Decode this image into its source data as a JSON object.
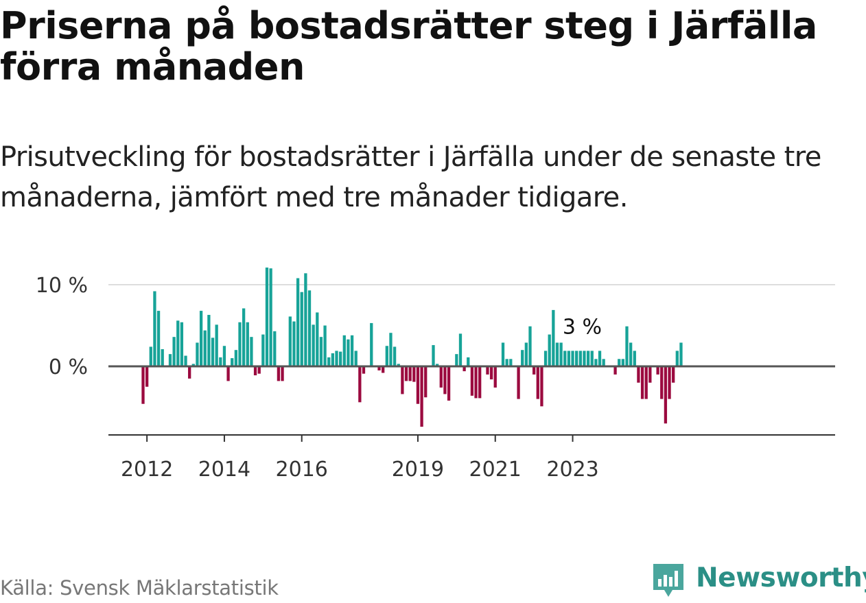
{
  "title": "Priserna på bostadsrätter steg i Järfälla förra månaden",
  "subtitle": "Prisutveckling för bostadsrätter i Järfälla under de senaste tre månaderna, jämfört med tre månader tidigare.",
  "source": "Källa: Svensk Mäklarstatistik",
  "logo": {
    "text": "Newsworthy",
    "icon": "newsworthy-logo-icon"
  },
  "colors": {
    "positive": "#17a398",
    "negative": "#9b0a3f",
    "grid": "#dddddd",
    "zero_line": "#555555",
    "brand": "#2b8f86"
  },
  "chart_data": {
    "type": "bar",
    "title": "Priserna på bostadsrätter steg i Järfälla förra månaden",
    "xlabel": "",
    "ylabel": "",
    "unit": "%",
    "ylim": [
      -8.5,
      12.5
    ],
    "yticks": [
      0,
      10
    ],
    "ytick_labels": [
      "0 %",
      "10 %"
    ],
    "x_start": "2011-12",
    "x_ticks": [
      {
        "label": "2012",
        "index": 1
      },
      {
        "label": "2014",
        "index": 21
      },
      {
        "label": "2016",
        "index": 41
      },
      {
        "label": "2019",
        "index": 71
      },
      {
        "label": "2021",
        "index": 91
      },
      {
        "label": "2023",
        "index": 111
      }
    ],
    "annotation": {
      "text": "3 %",
      "index": 114
    },
    "series": [
      {
        "name": "Prisutveckling",
        "values": [
          -4.6,
          -2.5,
          2.4,
          9.2,
          6.8,
          2.1,
          0,
          1.5,
          3.6,
          5.6,
          5.4,
          1.3,
          -1.5,
          0.3,
          2.9,
          6.8,
          4.4,
          6.3,
          3.5,
          5.1,
          1.1,
          2.5,
          -1.8,
          1.0,
          2.0,
          5.4,
          7.1,
          5.4,
          3.6,
          -1.1,
          -0.9,
          3.9,
          12.1,
          12.0,
          4.3,
          -1.8,
          -1.8,
          0,
          6.1,
          5.5,
          10.8,
          9.1,
          11.4,
          9.3,
          5.1,
          6.6,
          3.6,
          5.0,
          1.1,
          1.6,
          1.9,
          1.8,
          3.8,
          3.3,
          3.8,
          1.9,
          -4.4,
          -0.9,
          0,
          5.3,
          0,
          -0.5,
          -0.8,
          2.5,
          4.1,
          2.4,
          0.3,
          -3.4,
          -1.8,
          -1.8,
          -1.9,
          -4.6,
          -7.4,
          -3.8,
          0,
          2.6,
          0.3,
          -2.6,
          -3.4,
          -4.2,
          0,
          1.5,
          4.0,
          -0.6,
          1.1,
          -3.6,
          -3.9,
          -3.9,
          0,
          -1.0,
          -1.6,
          -2.6,
          0,
          2.9,
          0.9,
          0.9,
          0,
          -4.0,
          2.0,
          2.9,
          4.9,
          -1.0,
          -4.0,
          -4.9,
          1.9,
          3.9,
          6.9,
          2.9,
          2.9,
          1.9,
          1.9,
          1.9,
          1.9,
          1.9,
          1.9,
          1.9,
          1.9,
          0.9,
          1.9,
          0.9,
          0,
          0,
          -1.0,
          0.9,
          0.9,
          4.9,
          2.9,
          1.9,
          -2.0,
          -4.0,
          -4.0,
          -2.0,
          0,
          -1.0,
          -4.0,
          -7.0,
          -4.0,
          -2.0,
          1.9,
          2.9
        ]
      }
    ]
  }
}
